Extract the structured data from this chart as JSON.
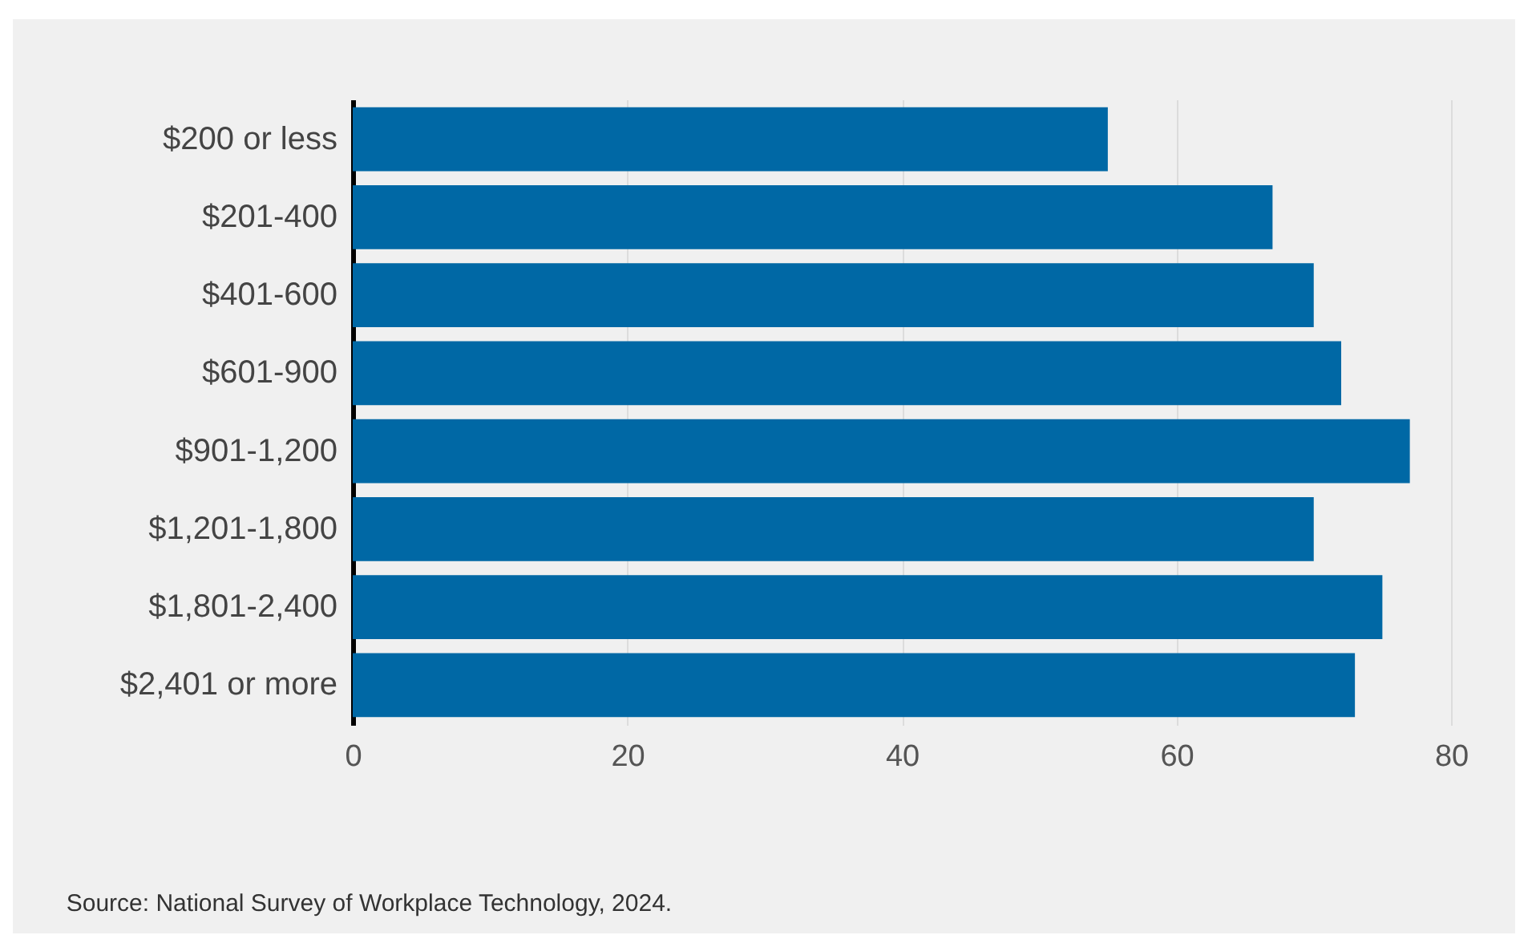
{
  "chart_data": {
    "type": "bar",
    "orientation": "horizontal",
    "categories": [
      "$200 or less",
      "$201-400",
      "$401-600",
      "$601-900",
      "$901-1,200",
      "$1,201-1,800",
      "$1,801-2,400",
      "$2,401 or more"
    ],
    "values": [
      55,
      67,
      70,
      72,
      77,
      70,
      75,
      73
    ],
    "color": "#0068a5",
    "xlim": [
      0,
      80
    ],
    "xticks": [
      0,
      20,
      40,
      60,
      80
    ],
    "grid": "x",
    "annotations": [
      "Source: National Survey of Workplace Technology, 2024."
    ]
  }
}
